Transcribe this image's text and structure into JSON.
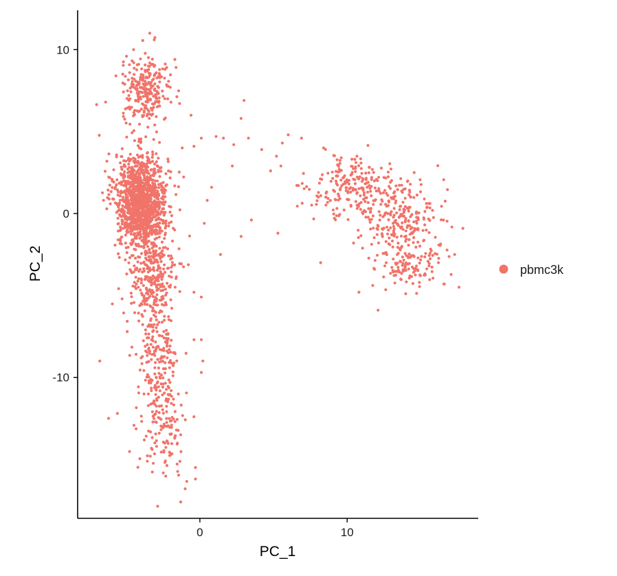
{
  "chart_data": {
    "type": "scatter",
    "xlabel": "PC_1",
    "ylabel": "PC_2",
    "xlim": [
      -8.3,
      18.9
    ],
    "ylim": [
      -18.6,
      12.4
    ],
    "xticks": [
      0,
      10
    ],
    "xtick_labels": [
      "0",
      "10"
    ],
    "yticks": [
      10,
      0,
      -10
    ],
    "ytick_labels": [
      "10",
      "0",
      "-10"
    ],
    "grid": false,
    "legend_placement": "right",
    "color": "#f0746a",
    "series": [
      {
        "name": "pbmc3k",
        "clusters": [
          {
            "center": [
              -4.0,
              1.3
            ],
            "spread": [
              1.2,
              1.6
            ],
            "count": 900
          },
          {
            "center": [
              -3.9,
              -0.4
            ],
            "spread": [
              1.0,
              1.2
            ],
            "count": 350
          },
          {
            "center": [
              -3.6,
              7.5
            ],
            "spread": [
              1.1,
              1.3
            ],
            "count": 260
          },
          {
            "center": [
              -3.3,
              -3.8
            ],
            "spread": [
              1.1,
              2.3
            ],
            "count": 340
          },
          {
            "center": [
              -2.9,
              -9.2
            ],
            "spread": [
              1.0,
              2.0
            ],
            "count": 160
          },
          {
            "center": [
              -2.5,
              -13.0
            ],
            "spread": [
              1.0,
              2.0
            ],
            "count": 130
          },
          {
            "center": [
              10.6,
              1.6
            ],
            "spread": [
              2.1,
              1.2
            ],
            "count": 210
          },
          {
            "center": [
              13.6,
              -0.4
            ],
            "spread": [
              1.8,
              1.6
            ],
            "count": 240
          },
          {
            "center": [
              14.2,
              -3.2
            ],
            "spread": [
              1.5,
              1.0
            ],
            "count": 100
          }
        ],
        "points": [
          [
            -1.2,
            4.0
          ],
          [
            -0.4,
            4.1
          ],
          [
            0.1,
            4.6
          ],
          [
            1.1,
            4.7
          ],
          [
            1.6,
            4.6
          ],
          [
            2.3,
            4.2
          ],
          [
            2.8,
            5.8
          ],
          [
            3.0,
            6.9
          ],
          [
            3.3,
            4.6
          ],
          [
            4.2,
            3.9
          ],
          [
            5.2,
            3.5
          ],
          [
            5.5,
            2.9
          ],
          [
            6.0,
            4.8
          ],
          [
            5.6,
            4.3
          ],
          [
            4.8,
            2.6
          ],
          [
            -0.4,
            -4.8
          ],
          [
            0.1,
            -5.1
          ],
          [
            -0.4,
            -7.7
          ],
          [
            0.1,
            -7.7
          ],
          [
            0.2,
            -9.0
          ],
          [
            0.1,
            -9.7
          ],
          [
            -0.4,
            -12.4
          ],
          [
            -0.3,
            -15.5
          ],
          [
            -0.3,
            -16.2
          ],
          [
            -1.3,
            -17.6
          ],
          [
            -1.0,
            -16.8
          ],
          [
            -1.3,
            -13.5
          ],
          [
            0.5,
            0.8
          ],
          [
            0.3,
            -0.6
          ],
          [
            0.8,
            1.6
          ],
          [
            1.4,
            -2.5
          ],
          [
            2.2,
            2.9
          ],
          [
            3.5,
            -0.4
          ],
          [
            5.3,
            -1.2
          ],
          [
            2.8,
            -1.4
          ],
          [
            -6.8,
            -9.0
          ],
          [
            -6.2,
            -12.5
          ],
          [
            -5.6,
            -12.2
          ],
          [
            -6.4,
            6.8
          ],
          [
            -5.7,
            8.4
          ],
          [
            -4.5,
            10.0
          ],
          [
            -3.4,
            11.0
          ],
          [
            -3.1,
            10.6
          ],
          [
            -1.7,
            9.4
          ],
          [
            -0.6,
            6.0
          ],
          [
            16.6,
            -4.3
          ],
          [
            17.6,
            -4.5
          ],
          [
            17.3,
            -2.5
          ],
          [
            16.2,
            -3.0
          ],
          [
            12.1,
            -5.9
          ],
          [
            10.8,
            -4.8
          ],
          [
            8.2,
            -3.0
          ],
          [
            9.6,
            3.4
          ],
          [
            6.9,
            4.6
          ],
          [
            8.4,
            4.0
          ]
        ]
      }
    ]
  }
}
